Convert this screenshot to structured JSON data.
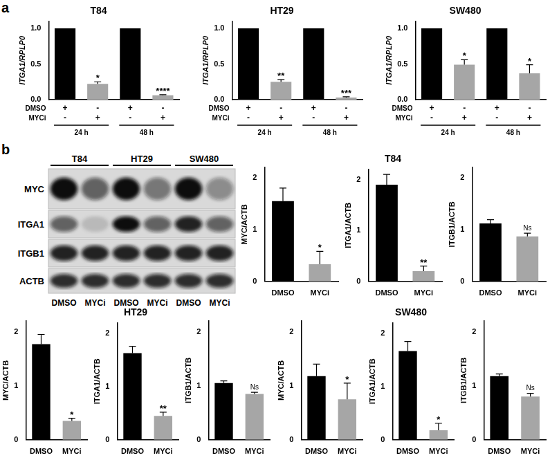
{
  "panel_labels": [
    "a",
    "b"
  ],
  "blot": {
    "cell_lines": [
      "T84",
      "HT29",
      "SW480"
    ],
    "lanes": [
      "DMSO",
      "MYCi",
      "DMSO",
      "MYCi",
      "DMSO",
      "MYCi"
    ],
    "rows": [
      {
        "label": "MYC",
        "intensity": [
          1.0,
          0.6,
          1.0,
          0.5,
          1.0,
          0.4
        ]
      },
      {
        "label": "ITGA1",
        "intensity": [
          0.6,
          0.15,
          1.0,
          0.6,
          0.9,
          0.6
        ]
      },
      {
        "label": "ITGB1",
        "intensity": [
          0.9,
          0.9,
          0.9,
          0.9,
          0.9,
          0.9
        ]
      },
      {
        "label": "ACTB",
        "intensity": [
          0.85,
          0.85,
          0.85,
          0.85,
          0.85,
          0.85
        ]
      }
    ]
  },
  "chart_data": [
    {
      "type": "bar",
      "title": "T84",
      "categories": [
        [
          "+",
          "-"
        ],
        [
          "-",
          "+"
        ],
        [
          "+",
          "-"
        ],
        [
          "-",
          "+"
        ]
      ],
      "row_labels": [
        "DMSO",
        "MYCi"
      ],
      "groups": [
        {
          "label": "24 h",
          "from": 0,
          "to": 1
        },
        {
          "label": "48 h",
          "from": 2,
          "to": 3
        }
      ],
      "values": [
        1.0,
        0.22,
        1.0,
        0.06
      ],
      "errors": [
        null,
        0.03,
        null,
        0.01
      ],
      "annotations": [
        null,
        "*",
        null,
        "****"
      ],
      "colors": [
        "#000000",
        "#a6a6a6",
        "#000000",
        "#a6a6a6"
      ],
      "y_label": "ITGA1/RPLP0",
      "ylim": [
        0,
        1.1
      ],
      "yticks": [
        {
          "value": 0,
          "label": "0.0"
        },
        {
          "value": 0.5,
          "label": "0.5"
        },
        {
          "value": 1,
          "label": "1.0"
        }
      ],
      "grid": false
    },
    {
      "type": "bar",
      "title": "HT29",
      "categories": [
        [
          "+",
          "-"
        ],
        [
          "-",
          "+"
        ],
        [
          "+",
          "-"
        ],
        [
          "-",
          "+"
        ]
      ],
      "row_labels": [
        "DMSO",
        "MYCi"
      ],
      "groups": [
        {
          "label": "24 h",
          "from": 0,
          "to": 1
        },
        {
          "label": "48 h",
          "from": 2,
          "to": 3
        }
      ],
      "values": [
        1.0,
        0.25,
        1.0,
        0.03
      ],
      "errors": [
        null,
        0.03,
        null,
        0.01
      ],
      "annotations": [
        null,
        "**",
        null,
        "***"
      ],
      "colors": [
        "#000000",
        "#a6a6a6",
        "#000000",
        "#a6a6a6"
      ],
      "y_label": "ITGA1/RPLP0",
      "ylim": [
        0,
        1.1
      ],
      "yticks": [
        {
          "value": 0,
          "label": "0.0"
        },
        {
          "value": 0.5,
          "label": "0.5"
        },
        {
          "value": 1,
          "label": "1.0"
        }
      ],
      "grid": false
    },
    {
      "type": "bar",
      "title": "SW480",
      "categories": [
        [
          "+",
          "-"
        ],
        [
          "-",
          "+"
        ],
        [
          "+",
          "-"
        ],
        [
          "-",
          "+"
        ]
      ],
      "row_labels": [
        "DMSO",
        "MYCi"
      ],
      "groups": [
        {
          "label": "24 h",
          "from": 0,
          "to": 1
        },
        {
          "label": "48 h",
          "from": 2,
          "to": 3
        }
      ],
      "values": [
        1.0,
        0.49,
        1.0,
        0.37
      ],
      "errors": [
        null,
        0.07,
        null,
        0.12
      ],
      "annotations": [
        null,
        "*",
        null,
        "*"
      ],
      "colors": [
        "#000000",
        "#a6a6a6",
        "#000000",
        "#a6a6a6"
      ],
      "y_label": "ITGA1/RPLP0",
      "ylim": [
        0,
        1.1
      ],
      "yticks": [
        {
          "value": 0,
          "label": "0.0"
        },
        {
          "value": 0.5,
          "label": "0.5"
        },
        {
          "value": 1,
          "label": "1.0"
        }
      ],
      "grid": false
    },
    {
      "type": "bar",
      "categories": [
        "DMSO",
        "MYCi"
      ],
      "values": [
        1.55,
        0.33
      ],
      "errors": [
        0.25,
        0.25
      ],
      "annotations": [
        null,
        "*"
      ],
      "colors": [
        "#000000",
        "#a6a6a6"
      ],
      "y_label": "MYC/ACTB",
      "ylim": [
        0,
        2.2
      ],
      "yticks": [
        0,
        1,
        2
      ],
      "grid": false
    },
    {
      "type": "bar",
      "title": "T84",
      "categories": [
        "DMSO",
        "MYCi"
      ],
      "values": [
        1.9,
        0.2
      ],
      "errors": [
        0.2,
        0.1
      ],
      "annotations": [
        null,
        "**"
      ],
      "colors": [
        "#000000",
        "#a6a6a6"
      ],
      "y_label": "ITGA1/ACTB",
      "ylim": [
        0,
        2.2
      ],
      "yticks": [
        0,
        1,
        2
      ],
      "grid": false
    },
    {
      "type": "bar",
      "categories": [
        "DMSO",
        "MYCi"
      ],
      "values": [
        1.12,
        0.87
      ],
      "errors": [
        0.07,
        0.06
      ],
      "annotations": [
        null,
        "Ns"
      ],
      "colors": [
        "#000000",
        "#a6a6a6"
      ],
      "y_label": "ITGB1/ACTB",
      "ylim": [
        0,
        2.2
      ],
      "yticks": [
        0,
        1,
        2
      ],
      "grid": false
    },
    {
      "type": "bar",
      "categories": [
        "DMSO",
        "MYCi"
      ],
      "values": [
        1.77,
        0.35
      ],
      "errors": [
        0.18,
        0.05
      ],
      "annotations": [
        null,
        "*"
      ],
      "colors": [
        "#000000",
        "#a6a6a6"
      ],
      "y_label": "MYC/ACTB",
      "ylim": [
        0,
        2.2
      ],
      "yticks": [
        0,
        1,
        2
      ],
      "grid": false
    },
    {
      "type": "bar",
      "title": "HT29",
      "categories": [
        "DMSO",
        "MYCi"
      ],
      "values": [
        1.63,
        0.45
      ],
      "errors": [
        0.13,
        0.07
      ],
      "annotations": [
        null,
        "**"
      ],
      "colors": [
        "#000000",
        "#a6a6a6"
      ],
      "y_label": "ITGA1/ACTB",
      "ylim": [
        0,
        2.2
      ],
      "yticks": [
        0,
        1,
        2
      ],
      "grid": false
    },
    {
      "type": "bar",
      "categories": [
        "DMSO",
        "MYCi"
      ],
      "values": [
        1.05,
        0.85
      ],
      "errors": [
        0.04,
        0.03
      ],
      "annotations": [
        null,
        "Ns"
      ],
      "colors": [
        "#000000",
        "#a6a6a6"
      ],
      "y_label": "ITGB1/ACTB",
      "ylim": [
        0,
        2.2
      ],
      "yticks": [
        0,
        1,
        2
      ],
      "grid": false
    },
    {
      "type": "bar",
      "categories": [
        "DMSO",
        "MYCi"
      ],
      "values": [
        1.18,
        0.75
      ],
      "errors": [
        0.22,
        0.3
      ],
      "annotations": [
        null,
        "*"
      ],
      "colors": [
        "#000000",
        "#a6a6a6"
      ],
      "y_label": "MYC/ACTB",
      "ylim": [
        0,
        2.2
      ],
      "yticks": [
        0,
        1,
        2
      ],
      "grid": false
    },
    {
      "type": "bar",
      "title": "SW480",
      "categories": [
        "DMSO",
        "MYCi"
      ],
      "values": [
        1.67,
        0.18
      ],
      "errors": [
        0.18,
        0.13
      ],
      "annotations": [
        null,
        "*"
      ],
      "colors": [
        "#000000",
        "#a6a6a6"
      ],
      "y_label": "ITGA1/ACTB",
      "ylim": [
        0,
        2.2
      ],
      "yticks": [
        0,
        1,
        2
      ],
      "grid": false
    },
    {
      "type": "bar",
      "categories": [
        "DMSO",
        "MYCi"
      ],
      "values": [
        1.18,
        0.8
      ],
      "errors": [
        0.04,
        0.06
      ],
      "annotations": [
        null,
        "Ns"
      ],
      "colors": [
        "#000000",
        "#a6a6a6"
      ],
      "y_label": "ITGB1/ACTB",
      "ylim": [
        0,
        2.2
      ],
      "yticks": [
        0,
        1,
        2
      ],
      "grid": false
    }
  ]
}
